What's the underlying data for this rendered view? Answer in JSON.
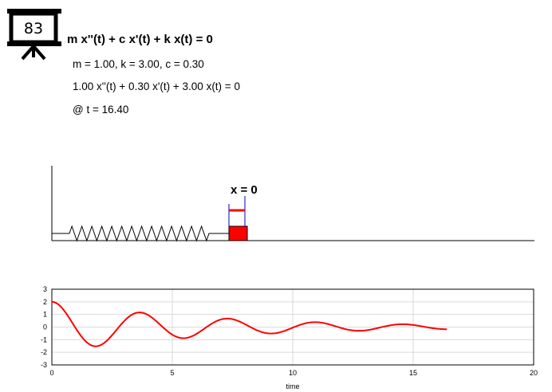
{
  "logo": {
    "number": "83"
  },
  "equation": {
    "general": "m x''(t) + c x'(t) + k x(t) = 0",
    "params": "m = 1.00, k = 3.00, c = 0.30",
    "specific": "1.00 x''(t) + 0.30 x'(t) + 3.00 x(t) = 0",
    "time": "@ t = 16.40"
  },
  "spring_diagram": {
    "position_label": "x = 0",
    "mass_color": "#ff0000"
  },
  "chart_data": {
    "type": "line",
    "xlabel": "time",
    "ylabel": "",
    "xlim": [
      0,
      20
    ],
    "ylim": [
      -3,
      3
    ],
    "x_ticks": [
      0,
      5,
      10,
      15,
      20
    ],
    "y_ticks": [
      3,
      2,
      1,
      0,
      -1,
      -2,
      -3
    ],
    "grid": true,
    "model": {
      "m": 1.0,
      "k": 3.0,
      "c": 0.3,
      "x0": 2.0,
      "v0": 0.0,
      "t_end": 16.4
    },
    "series": [
      {
        "color": "#ff0000",
        "x": [
          0,
          0.5,
          1.0,
          1.5,
          2.0,
          2.5,
          3.0,
          3.5,
          4.0,
          4.5,
          5.0,
          5.5,
          6.0,
          6.5,
          7.0,
          7.5,
          8.0,
          8.5,
          9.0,
          9.5,
          10.0,
          10.5,
          11.0,
          11.5,
          12.0,
          12.5,
          13.0,
          13.5,
          14.0,
          14.5,
          15.0,
          15.5,
          16.0,
          16.4
        ],
        "y": [
          2.0,
          1.26,
          -0.2,
          -1.25,
          -1.5,
          -0.7,
          0.48,
          1.13,
          0.9,
          0.12,
          -0.62,
          -0.84,
          -0.4,
          0.26,
          0.63,
          0.52,
          0.0,
          -0.4,
          -0.48,
          -0.15,
          0.22,
          0.38,
          0.26,
          -0.04,
          -0.28,
          -0.27,
          -0.06,
          0.16,
          0.22,
          0.12,
          -0.06,
          -0.17,
          -0.14,
          -0.05
        ]
      }
    ]
  }
}
